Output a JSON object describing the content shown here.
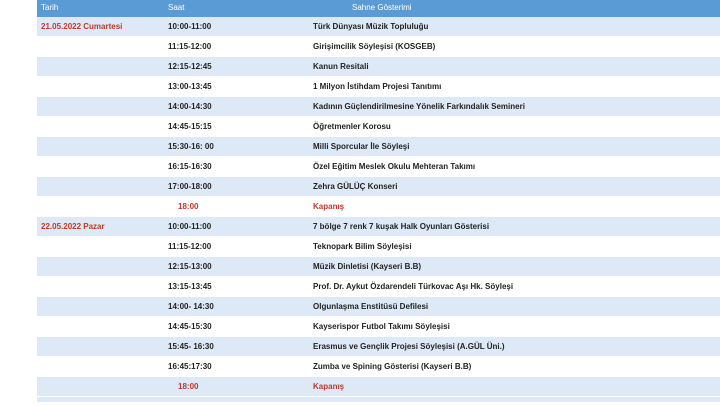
{
  "headers": {
    "date": "Tarih",
    "time": "Saat",
    "event": "Sahne Gösterimi"
  },
  "rows": [
    {
      "date": "21.05.2022 Cumartesi",
      "time": "10:00-11:00",
      "event": "Türk Dünyası Müzik Topluluğu"
    },
    {
      "date": "",
      "time": "11:15-12:00",
      "event": "Girişimcilik Söyleşisi (KOSGEB)"
    },
    {
      "date": "",
      "time": "12:15-12:45",
      "event": "Kanun Resitali"
    },
    {
      "date": "",
      "time": "13:00-13:45",
      "event": "1 Milyon İstihdam Projesi Tanıtımı"
    },
    {
      "date": "",
      "time": "14:00-14:30",
      "event": "Kadının Güçlendirilmesine Yönelik Farkındalık Semineri"
    },
    {
      "date": "",
      "time": "14:45-15:15",
      "event": "Öğretmenler Korosu"
    },
    {
      "date": "",
      "time": "15:30-16: 00",
      "event": "Milli Sporcular İle Söyleşi"
    },
    {
      "date": "",
      "time": "16:15-16:30",
      "event": "Özel Eğitim Meslek Okulu Mehteran Takımı"
    },
    {
      "date": "",
      "time": "17:00-18:00",
      "event": "Zehra GÜLÜÇ Konseri"
    },
    {
      "date": "",
      "time": "18:00",
      "event": "Kapanış",
      "closing": true
    },
    {
      "date": "22.05.2022 Pazar",
      "time": "10:00-11:00",
      "event": "7 bölge 7 renk 7 kuşak Halk Oyunları Gösterisi"
    },
    {
      "date": "",
      "time": "11:15-12:00",
      "event": "Teknopark Bilim Söyleşisi"
    },
    {
      "date": "",
      "time": "12:15-13:00",
      "event": "Müzik Dinletisi (Kayseri B.B)"
    },
    {
      "date": "",
      "time": "13:15-13:45",
      "event": "Prof. Dr. Aykut Özdarendeli Türkovac Aşı Hk. Söyleşi"
    },
    {
      "date": "",
      "time": "14:00- 14:30",
      "event": "Olgunlaşma Enstitüsü Defilesi"
    },
    {
      "date": "",
      "time": "14:45-15:30",
      "event": "Kayserispor Futbol Takımı Söyleşisi"
    },
    {
      "date": "",
      "time": "15:45- 16:30",
      "event": "Erasmus ve Gençlik Projesi Söyleşisi (A.GÜL Üni.)"
    },
    {
      "date": "",
      "time": "16:45:17:30",
      "event": "Zumba ve Spining Gösterisi (Kayseri B.B)"
    },
    {
      "date": "",
      "time": "18:00",
      "event": "Kapanış",
      "closing": true
    }
  ],
  "colors": {
    "header": "#5b9bd5",
    "stripe": "#dde9f6",
    "accent_red": "#c0392b"
  }
}
